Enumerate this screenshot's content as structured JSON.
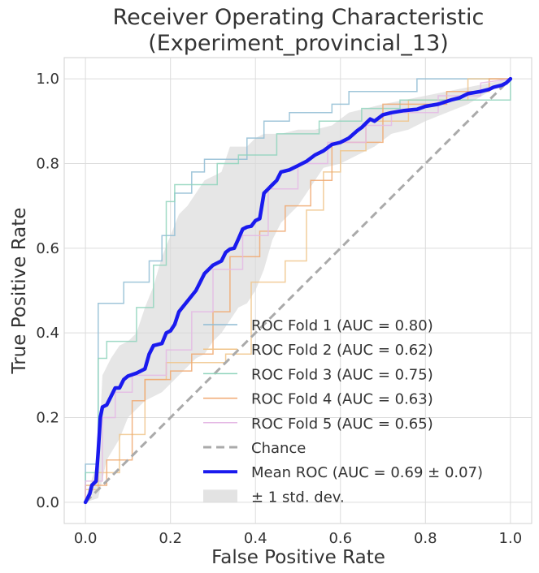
{
  "chart_data": {
    "type": "line",
    "title_lines": [
      "Receiver Operating Characteristic",
      "(Experiment_provincial_13)"
    ],
    "xlabel": "False Positive Rate",
    "ylabel": "True Positive Rate",
    "xlim": [
      -0.05,
      1.05
    ],
    "ylim": [
      -0.05,
      1.05
    ],
    "xticks": [
      0.0,
      0.2,
      0.4,
      0.6,
      0.8,
      1.0
    ],
    "yticks": [
      0.0,
      0.2,
      0.4,
      0.6,
      0.8,
      1.0
    ],
    "tick_labels_x": [
      "0.0",
      "0.2",
      "0.4",
      "0.6",
      "0.8",
      "1.0"
    ],
    "tick_labels_y": [
      "0.0",
      "0.2",
      "0.4",
      "0.6",
      "0.8",
      "1.0"
    ],
    "grid": true,
    "legend_position": "bottom-right",
    "colors": {
      "fold1": "#8fbcd4",
      "fold2": "#f0c48a",
      "fold3": "#8fd4bc",
      "fold4": "#f0a870",
      "fold5": "#e4b8e4",
      "chance": "#aaaaaa",
      "mean": "#1a1aee",
      "band": "#d9d9d9"
    },
    "series": [
      {
        "name": "ROC Fold 1 (AUC = 0.80)",
        "color_key": "fold1",
        "points": [
          [
            0,
            0
          ],
          [
            0,
            0.09
          ],
          [
            0.03,
            0.09
          ],
          [
            0.03,
            0.47
          ],
          [
            0.09,
            0.47
          ],
          [
            0.09,
            0.52
          ],
          [
            0.15,
            0.52
          ],
          [
            0.15,
            0.57
          ],
          [
            0.18,
            0.57
          ],
          [
            0.18,
            0.63
          ],
          [
            0.21,
            0.63
          ],
          [
            0.21,
            0.73
          ],
          [
            0.25,
            0.73
          ],
          [
            0.25,
            0.78
          ],
          [
            0.28,
            0.78
          ],
          [
            0.28,
            0.81
          ],
          [
            0.38,
            0.81
          ],
          [
            0.38,
            0.86
          ],
          [
            0.42,
            0.86
          ],
          [
            0.42,
            0.9
          ],
          [
            0.48,
            0.9
          ],
          [
            0.48,
            0.92
          ],
          [
            0.58,
            0.92
          ],
          [
            0.58,
            0.94
          ],
          [
            0.62,
            0.94
          ],
          [
            0.62,
            0.97
          ],
          [
            0.78,
            0.97
          ],
          [
            0.78,
            1.0
          ],
          [
            1,
            1
          ]
        ]
      },
      {
        "name": "ROC Fold 2 (AUC = 0.62)",
        "color_key": "fold2",
        "points": [
          [
            0,
            0
          ],
          [
            0,
            0.03
          ],
          [
            0.03,
            0.03
          ],
          [
            0.03,
            0.07
          ],
          [
            0.08,
            0.07
          ],
          [
            0.08,
            0.16
          ],
          [
            0.14,
            0.16
          ],
          [
            0.14,
            0.29
          ],
          [
            0.19,
            0.29
          ],
          [
            0.19,
            0.33
          ],
          [
            0.33,
            0.33
          ],
          [
            0.33,
            0.35
          ],
          [
            0.39,
            0.35
          ],
          [
            0.39,
            0.52
          ],
          [
            0.47,
            0.52
          ],
          [
            0.47,
            0.57
          ],
          [
            0.52,
            0.57
          ],
          [
            0.52,
            0.69
          ],
          [
            0.56,
            0.69
          ],
          [
            0.56,
            0.78
          ],
          [
            0.6,
            0.78
          ],
          [
            0.6,
            0.83
          ],
          [
            0.66,
            0.83
          ],
          [
            0.66,
            0.9
          ],
          [
            0.76,
            0.9
          ],
          [
            0.76,
            0.95
          ],
          [
            0.9,
            0.95
          ],
          [
            0.9,
            1.0
          ],
          [
            1,
            1
          ]
        ]
      },
      {
        "name": "ROC Fold 3 (AUC = 0.75)",
        "color_key": "fold3",
        "points": [
          [
            0,
            0
          ],
          [
            0,
            0.07
          ],
          [
            0.03,
            0.07
          ],
          [
            0.03,
            0.34
          ],
          [
            0.05,
            0.34
          ],
          [
            0.05,
            0.38
          ],
          [
            0.12,
            0.38
          ],
          [
            0.12,
            0.46
          ],
          [
            0.16,
            0.46
          ],
          [
            0.16,
            0.56
          ],
          [
            0.19,
            0.56
          ],
          [
            0.19,
            0.71
          ],
          [
            0.21,
            0.71
          ],
          [
            0.21,
            0.75
          ],
          [
            0.31,
            0.75
          ],
          [
            0.31,
            0.8
          ],
          [
            0.36,
            0.8
          ],
          [
            0.36,
            0.82
          ],
          [
            0.45,
            0.82
          ],
          [
            0.45,
            0.87
          ],
          [
            0.55,
            0.87
          ],
          [
            0.55,
            0.9
          ],
          [
            0.65,
            0.9
          ],
          [
            0.65,
            0.93
          ],
          [
            0.74,
            0.93
          ],
          [
            0.74,
            0.95
          ],
          [
            1,
            0.95
          ],
          [
            1,
            1
          ]
        ]
      },
      {
        "name": "ROC Fold 4 (AUC = 0.63)",
        "color_key": "fold4",
        "points": [
          [
            0,
            0
          ],
          [
            0,
            0.04
          ],
          [
            0.05,
            0.04
          ],
          [
            0.05,
            0.1
          ],
          [
            0.11,
            0.1
          ],
          [
            0.11,
            0.24
          ],
          [
            0.14,
            0.24
          ],
          [
            0.14,
            0.29
          ],
          [
            0.2,
            0.29
          ],
          [
            0.2,
            0.31
          ],
          [
            0.25,
            0.31
          ],
          [
            0.25,
            0.35
          ],
          [
            0.3,
            0.35
          ],
          [
            0.3,
            0.45
          ],
          [
            0.34,
            0.45
          ],
          [
            0.34,
            0.58
          ],
          [
            0.41,
            0.58
          ],
          [
            0.41,
            0.64
          ],
          [
            0.47,
            0.64
          ],
          [
            0.47,
            0.7
          ],
          [
            0.53,
            0.7
          ],
          [
            0.53,
            0.76
          ],
          [
            0.58,
            0.76
          ],
          [
            0.58,
            0.85
          ],
          [
            0.7,
            0.85
          ],
          [
            0.7,
            0.94
          ],
          [
            0.85,
            0.94
          ],
          [
            0.85,
            0.97
          ],
          [
            0.95,
            0.97
          ],
          [
            0.95,
            1.0
          ],
          [
            1,
            1
          ]
        ]
      },
      {
        "name": "ROC Fold 5 (AUC = 0.65)",
        "color_key": "fold5",
        "points": [
          [
            0,
            0
          ],
          [
            0,
            0.05
          ],
          [
            0.04,
            0.05
          ],
          [
            0.04,
            0.2
          ],
          [
            0.07,
            0.2
          ],
          [
            0.07,
            0.26
          ],
          [
            0.11,
            0.26
          ],
          [
            0.11,
            0.3
          ],
          [
            0.19,
            0.3
          ],
          [
            0.19,
            0.36
          ],
          [
            0.25,
            0.36
          ],
          [
            0.25,
            0.45
          ],
          [
            0.3,
            0.45
          ],
          [
            0.3,
            0.55
          ],
          [
            0.37,
            0.55
          ],
          [
            0.37,
            0.63
          ],
          [
            0.43,
            0.63
          ],
          [
            0.43,
            0.74
          ],
          [
            0.5,
            0.74
          ],
          [
            0.5,
            0.8
          ],
          [
            0.57,
            0.8
          ],
          [
            0.57,
            0.85
          ],
          [
            0.66,
            0.85
          ],
          [
            0.66,
            0.89
          ],
          [
            0.72,
            0.89
          ],
          [
            0.72,
            0.92
          ],
          [
            0.83,
            0.92
          ],
          [
            0.83,
            0.96
          ],
          [
            0.93,
            0.96
          ],
          [
            0.93,
            0.99
          ],
          [
            1,
            1
          ]
        ]
      }
    ],
    "chance": {
      "name": "Chance",
      "points": [
        [
          0,
          0
        ],
        [
          1,
          1
        ]
      ]
    },
    "mean": {
      "name": "Mean ROC (AUC = 0.69 ± 0.07)",
      "points": [
        [
          0,
          0
        ],
        [
          0.01,
          0.02
        ],
        [
          0.015,
          0.04
        ],
        [
          0.02,
          0.045
        ],
        [
          0.025,
          0.05
        ],
        [
          0.03,
          0.12
        ],
        [
          0.035,
          0.2
        ],
        [
          0.04,
          0.225
        ],
        [
          0.05,
          0.23
        ],
        [
          0.06,
          0.25
        ],
        [
          0.07,
          0.27
        ],
        [
          0.08,
          0.27
        ],
        [
          0.09,
          0.29
        ],
        [
          0.1,
          0.298
        ],
        [
          0.12,
          0.305
        ],
        [
          0.14,
          0.315
        ],
        [
          0.15,
          0.35
        ],
        [
          0.16,
          0.37
        ],
        [
          0.18,
          0.375
        ],
        [
          0.19,
          0.4
        ],
        [
          0.2,
          0.405
        ],
        [
          0.21,
          0.42
        ],
        [
          0.22,
          0.45
        ],
        [
          0.24,
          0.475
        ],
        [
          0.26,
          0.5
        ],
        [
          0.28,
          0.54
        ],
        [
          0.3,
          0.56
        ],
        [
          0.32,
          0.57
        ],
        [
          0.33,
          0.59
        ],
        [
          0.34,
          0.598
        ],
        [
          0.35,
          0.6
        ],
        [
          0.36,
          0.622
        ],
        [
          0.37,
          0.645
        ],
        [
          0.38,
          0.65
        ],
        [
          0.39,
          0.652
        ],
        [
          0.4,
          0.665
        ],
        [
          0.41,
          0.67
        ],
        [
          0.42,
          0.73
        ],
        [
          0.43,
          0.74
        ],
        [
          0.44,
          0.75
        ],
        [
          0.45,
          0.76
        ],
        [
          0.46,
          0.78
        ],
        [
          0.48,
          0.785
        ],
        [
          0.5,
          0.795
        ],
        [
          0.52,
          0.805
        ],
        [
          0.54,
          0.82
        ],
        [
          0.56,
          0.83
        ],
        [
          0.58,
          0.845
        ],
        [
          0.6,
          0.85
        ],
        [
          0.62,
          0.86
        ],
        [
          0.64,
          0.878
        ],
        [
          0.65,
          0.885
        ],
        [
          0.66,
          0.895
        ],
        [
          0.67,
          0.905
        ],
        [
          0.68,
          0.9
        ],
        [
          0.7,
          0.915
        ],
        [
          0.72,
          0.92
        ],
        [
          0.75,
          0.925
        ],
        [
          0.78,
          0.928
        ],
        [
          0.8,
          0.935
        ],
        [
          0.83,
          0.94
        ],
        [
          0.86,
          0.95
        ],
        [
          0.88,
          0.955
        ],
        [
          0.9,
          0.965
        ],
        [
          0.93,
          0.97
        ],
        [
          0.95,
          0.975
        ],
        [
          0.96,
          0.98
        ],
        [
          0.98,
          0.985
        ],
        [
          0.99,
          0.99
        ],
        [
          1.0,
          1.0
        ]
      ]
    },
    "band": {
      "name": "± 1 std. dev.",
      "upper": [
        [
          0,
          0.01
        ],
        [
          0.03,
          0.1
        ],
        [
          0.04,
          0.3
        ],
        [
          0.06,
          0.34
        ],
        [
          0.08,
          0.37
        ],
        [
          0.1,
          0.38
        ],
        [
          0.12,
          0.4
        ],
        [
          0.14,
          0.46
        ],
        [
          0.16,
          0.51
        ],
        [
          0.18,
          0.58
        ],
        [
          0.2,
          0.63
        ],
        [
          0.22,
          0.68
        ],
        [
          0.24,
          0.7
        ],
        [
          0.26,
          0.73
        ],
        [
          0.28,
          0.76
        ],
        [
          0.3,
          0.77
        ],
        [
          0.32,
          0.78
        ],
        [
          0.34,
          0.84
        ],
        [
          0.36,
          0.84
        ],
        [
          0.38,
          0.84
        ],
        [
          0.4,
          0.86
        ],
        [
          0.42,
          0.87
        ],
        [
          0.46,
          0.87
        ],
        [
          0.5,
          0.88
        ],
        [
          0.54,
          0.88
        ],
        [
          0.58,
          0.89
        ],
        [
          0.62,
          0.92
        ],
        [
          0.66,
          0.93
        ],
        [
          0.7,
          0.94
        ],
        [
          0.75,
          0.95
        ],
        [
          0.8,
          0.96
        ],
        [
          0.85,
          0.97
        ],
        [
          0.9,
          0.98
        ],
        [
          0.95,
          0.99
        ],
        [
          1,
          1
        ]
      ],
      "lower": [
        [
          0,
          0
        ],
        [
          0.03,
          0.01
        ],
        [
          0.05,
          0.1
        ],
        [
          0.08,
          0.15
        ],
        [
          0.1,
          0.2
        ],
        [
          0.12,
          0.22
        ],
        [
          0.14,
          0.24
        ],
        [
          0.16,
          0.25
        ],
        [
          0.18,
          0.26
        ],
        [
          0.2,
          0.28
        ],
        [
          0.22,
          0.3
        ],
        [
          0.24,
          0.32
        ],
        [
          0.26,
          0.34
        ],
        [
          0.28,
          0.35
        ],
        [
          0.3,
          0.38
        ],
        [
          0.32,
          0.4
        ],
        [
          0.34,
          0.43
        ],
        [
          0.36,
          0.46
        ],
        [
          0.38,
          0.47
        ],
        [
          0.4,
          0.5
        ],
        [
          0.42,
          0.55
        ],
        [
          0.44,
          0.62
        ],
        [
          0.46,
          0.66
        ],
        [
          0.48,
          0.68
        ],
        [
          0.5,
          0.7
        ],
        [
          0.52,
          0.73
        ],
        [
          0.54,
          0.76
        ],
        [
          0.56,
          0.79
        ],
        [
          0.6,
          0.8
        ],
        [
          0.64,
          0.82
        ],
        [
          0.68,
          0.84
        ],
        [
          0.72,
          0.87
        ],
        [
          0.76,
          0.88
        ],
        [
          0.8,
          0.9
        ],
        [
          0.85,
          0.92
        ],
        [
          0.9,
          0.94
        ],
        [
          0.95,
          0.97
        ],
        [
          1,
          1
        ]
      ]
    },
    "legend_entries": [
      {
        "label": "ROC Fold 1 (AUC = 0.80)",
        "kind": "line",
        "color_key": "fold1"
      },
      {
        "label": "ROC Fold 2 (AUC = 0.62)",
        "kind": "line",
        "color_key": "fold2"
      },
      {
        "label": "ROC Fold 3 (AUC = 0.75)",
        "kind": "line",
        "color_key": "fold3"
      },
      {
        "label": "ROC Fold 4 (AUC = 0.63)",
        "kind": "line",
        "color_key": "fold4"
      },
      {
        "label": "ROC Fold 5 (AUC = 0.65)",
        "kind": "line",
        "color_key": "fold5"
      },
      {
        "label": "Chance",
        "kind": "dash",
        "color_key": "chance"
      },
      {
        "label": "Mean ROC (AUC = 0.69 ± 0.07)",
        "kind": "thick",
        "color_key": "mean"
      },
      {
        "label": "± 1 std. dev.",
        "kind": "patch",
        "color_key": "band"
      }
    ]
  }
}
